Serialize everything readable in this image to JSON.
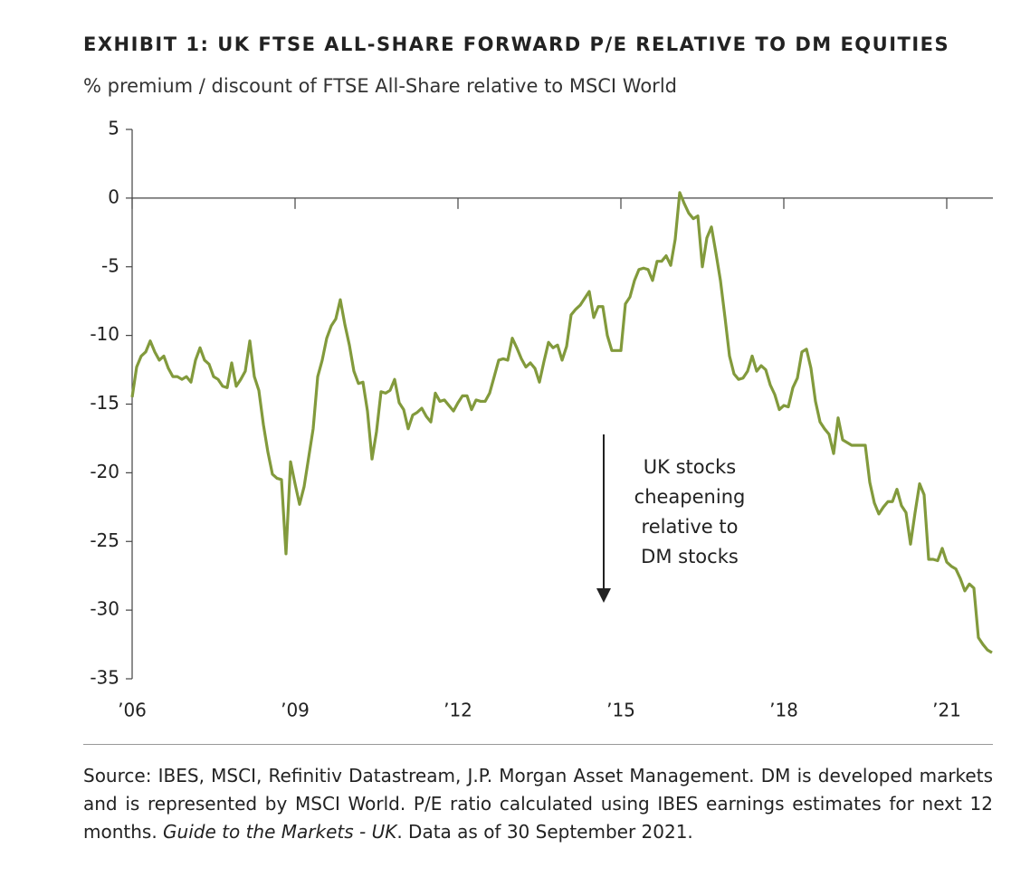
{
  "chart_data": {
    "type": "line",
    "title": "EXHIBIT 1: UK FTSE ALL-SHARE FORWARD P/E RELATIVE TO DM EQUITIES",
    "subtitle": "% premium / discount of FTSE All-Share relative to MSCI World",
    "annotation": [
      "UK stocks",
      "cheapening",
      "relative to",
      "DM stocks"
    ],
    "color": "#829a3c",
    "x": [
      2006,
      2006.083,
      2006.167,
      2006.25,
      2006.333,
      2006.417,
      2006.5,
      2006.583,
      2006.667,
      2006.75,
      2006.833,
      2006.917,
      2007,
      2007.083,
      2007.167,
      2007.25,
      2007.333,
      2007.417,
      2007.5,
      2007.583,
      2007.667,
      2007.75,
      2007.833,
      2007.917,
      2008,
      2008.083,
      2008.167,
      2008.25,
      2008.333,
      2008.417,
      2008.5,
      2008.583,
      2008.667,
      2008.75,
      2008.833,
      2008.917,
      2009,
      2009.083,
      2009.167,
      2009.25,
      2009.333,
      2009.417,
      2009.5,
      2009.583,
      2009.667,
      2009.75,
      2009.833,
      2009.917,
      2010,
      2010.083,
      2010.167,
      2010.25,
      2010.333,
      2010.417,
      2010.5,
      2010.583,
      2010.667,
      2010.75,
      2010.833,
      2010.917,
      2011,
      2011.083,
      2011.167,
      2011.25,
      2011.333,
      2011.417,
      2011.5,
      2011.583,
      2011.667,
      2011.75,
      2011.833,
      2011.917,
      2012,
      2012.083,
      2012.167,
      2012.25,
      2012.333,
      2012.417,
      2012.5,
      2012.583,
      2012.667,
      2012.75,
      2012.833,
      2012.917,
      2013,
      2013.083,
      2013.167,
      2013.25,
      2013.333,
      2013.417,
      2013.5,
      2013.583,
      2013.667,
      2013.75,
      2013.833,
      2013.917,
      2014,
      2014.083,
      2014.167,
      2014.25,
      2014.333,
      2014.417,
      2014.5,
      2014.583,
      2014.667,
      2014.75,
      2014.833,
      2014.917,
      2015,
      2015.083,
      2015.167,
      2015.25,
      2015.333,
      2015.417,
      2015.5,
      2015.583,
      2015.667,
      2015.75,
      2015.833,
      2015.917,
      2016,
      2016.083,
      2016.167,
      2016.25,
      2016.333,
      2016.417,
      2016.5,
      2016.583,
      2016.667,
      2016.75,
      2016.833,
      2016.917,
      2017,
      2017.083,
      2017.167,
      2017.25,
      2017.333,
      2017.417,
      2017.5,
      2017.583,
      2017.667,
      2017.75,
      2017.833,
      2017.917,
      2018,
      2018.083,
      2018.167,
      2018.25,
      2018.333,
      2018.417,
      2018.5,
      2018.583,
      2018.667,
      2018.75,
      2018.833,
      2018.917,
      2019,
      2019.083,
      2019.167,
      2019.25,
      2019.333,
      2019.417,
      2019.5,
      2019.583,
      2019.667,
      2019.75,
      2019.833,
      2019.917,
      2020,
      2020.083,
      2020.167,
      2020.25,
      2020.333,
      2020.417,
      2020.5,
      2020.583,
      2020.667,
      2020.75,
      2020.833,
      2020.917,
      2021,
      2021.083,
      2021.167,
      2021.25,
      2021.333,
      2021.417,
      2021.5,
      2021.583,
      2021.667,
      2021.75,
      2021.833
    ],
    "values": [
      -14.5,
      -12.3,
      -11.5,
      -11.2,
      -10.4,
      -11.2,
      -11.8,
      -11.5,
      -12.4,
      -13,
      -13,
      -13.2,
      -13,
      -13.4,
      -11.8,
      -10.9,
      -11.8,
      -12.1,
      -13,
      -13.2,
      -13.7,
      -13.8,
      -12,
      -13.7,
      -13.2,
      -12.6,
      -10.4,
      -13,
      -14,
      -16.5,
      -18.5,
      -20.1,
      -20.4,
      -20.5,
      -25.9,
      -19.2,
      -20.8,
      -22.3,
      -21,
      -18.9,
      -16.8,
      -13,
      -11.8,
      -10.2,
      -9.3,
      -8.8,
      -7.4,
      -9.2,
      -10.7,
      -12.6,
      -13.5,
      -13.4,
      -15.5,
      -19,
      -17,
      -14.1,
      -14.2,
      -14,
      -13.2,
      -14.9,
      -15.4,
      -16.8,
      -15.8,
      -15.6,
      -15.3,
      -15.9,
      -16.3,
      -14.2,
      -14.8,
      -14.7,
      -15.1,
      -15.5,
      -14.9,
      -14.4,
      -14.4,
      -15.4,
      -14.7,
      -14.8,
      -14.8,
      -14.2,
      -13,
      -11.8,
      -11.7,
      -11.8,
      -10.2,
      -10.9,
      -11.7,
      -12.3,
      -12,
      -12.4,
      -13.4,
      -11.9,
      -10.5,
      -10.9,
      -10.7,
      -11.8,
      -10.8,
      -8.5,
      -8.1,
      -7.8,
      -7.3,
      -6.8,
      -8.7,
      -7.9,
      -7.9,
      -10,
      -11.1,
      -11.1,
      -11.1,
      -7.7,
      -7.2,
      -6,
      -5.2,
      -5.1,
      -5.2,
      -6,
      -4.6,
      -4.6,
      -4.2,
      -4.9,
      -3,
      0.4,
      -0.4,
      -1.1,
      -1.5,
      -1.3,
      -5,
      -2.9,
      -2.1,
      -4,
      -6,
      -8.7,
      -11.5,
      -12.8,
      -13.2,
      -13.1,
      -12.6,
      -11.5,
      -12.6,
      -12.2,
      -12.5,
      -13.6,
      -14.3,
      -15.4,
      -15.1,
      -15.2,
      -13.8,
      -13.1,
      -11.2,
      -11,
      -12.4,
      -14.8,
      -16.3,
      -16.8,
      -17.2,
      -18.6,
      -16,
      -17.6,
      -17.8,
      -18,
      -18,
      -18,
      -18,
      -20.7,
      -22.2,
      -23,
      -22.5,
      -22.1,
      -22.1,
      -21.2,
      -22.4,
      -22.9,
      -25.2,
      -22.9,
      -20.8,
      -21.6,
      -26.3,
      -26.3,
      -26.4,
      -25.5,
      -26.5,
      -26.8,
      -27,
      -27.7,
      -28.6,
      -28.1,
      -28.4,
      -32,
      -32.5,
      -32.9,
      -33.1
    ],
    "xlim": [
      2006,
      2021.85
    ],
    "xticks": [
      {
        "value": 2006,
        "label": "’06"
      },
      {
        "value": 2009,
        "label": "’09"
      },
      {
        "value": 2012,
        "label": "’12"
      },
      {
        "value": 2015,
        "label": "’15"
      },
      {
        "value": 2018,
        "label": "’18"
      },
      {
        "value": 2021,
        "label": "’21"
      }
    ],
    "ylim": [
      -35,
      5
    ],
    "yticks": [
      -35,
      -30,
      -25,
      -20,
      -15,
      -10,
      -5,
      0,
      5
    ],
    "grid": false
  },
  "footer": {
    "before": "Source: IBES, MSCI, Refinitiv Datastream, J.P. Morgan Asset Management. DM is developed markets and is represented by MSCI World. P/E ratio calculated using IBES earnings estimates for next 12 months. ",
    "italic": "Guide to the Markets - UK",
    "after": ". Data as of 30 September 2021."
  }
}
